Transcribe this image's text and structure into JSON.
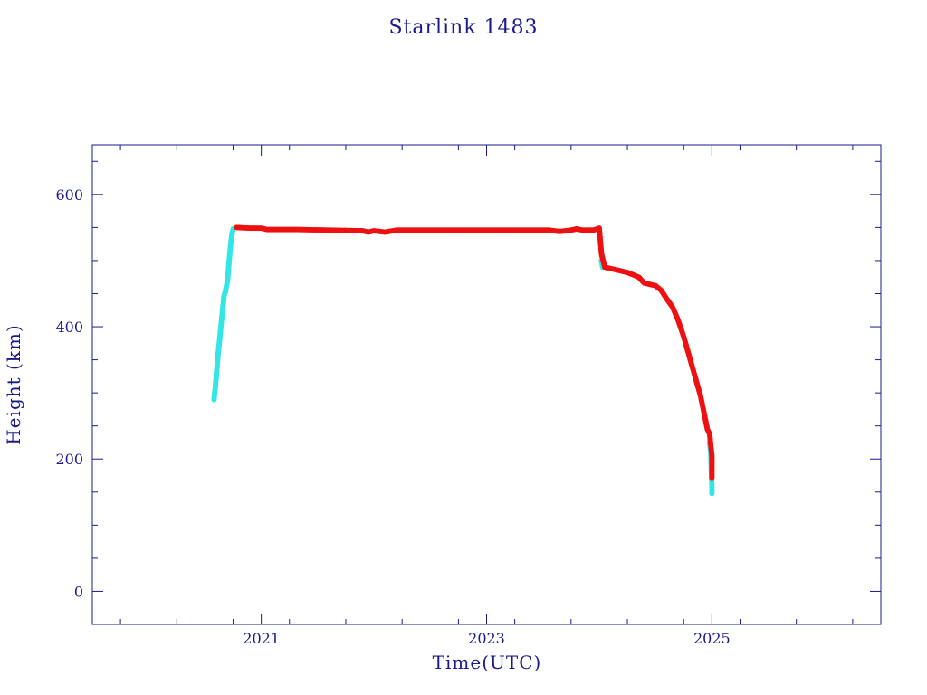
{
  "chart_data": {
    "type": "scatter",
    "title": "Starlink 1483",
    "xlabel": "Time(UTC)",
    "ylabel": "Height (km)",
    "xlim": [
      2019.5,
      2026.5
    ],
    "ylim": [
      -50,
      675
    ],
    "x_ticks": [
      2021,
      2023,
      2025
    ],
    "x_tick_labels": [
      "2021",
      "2023",
      "2025"
    ],
    "y_ticks": [
      0,
      200,
      400,
      600
    ],
    "y_tick_labels": [
      "0",
      "200",
      "400",
      "600"
    ],
    "grid": false,
    "legend": "none",
    "colors": {
      "series_a": "#33e6e6",
      "series_b": "#ee1111",
      "axis": "#1a1a8c"
    },
    "series": [
      {
        "color": "#33e6e6",
        "points": [
          [
            2020.58,
            290
          ],
          [
            2020.59,
            305
          ],
          [
            2020.6,
            325
          ],
          [
            2020.61,
            345
          ],
          [
            2020.62,
            365
          ],
          [
            2020.63,
            380
          ],
          [
            2020.64,
            398
          ],
          [
            2020.65,
            415
          ],
          [
            2020.66,
            432
          ],
          [
            2020.67,
            448
          ],
          [
            2020.68,
            452
          ],
          [
            2020.7,
            470
          ],
          [
            2020.71,
            490
          ],
          [
            2020.72,
            510
          ],
          [
            2020.73,
            528
          ],
          [
            2020.74,
            540
          ],
          [
            2020.75,
            548
          ],
          [
            2024.02,
            500
          ],
          [
            2024.03,
            490
          ],
          [
            2024.98,
            225
          ],
          [
            2024.99,
            212
          ],
          [
            2025.0,
            160
          ],
          [
            2025.0,
            148
          ]
        ]
      },
      {
        "color": "#ee1111",
        "points": [
          [
            2020.78,
            550
          ],
          [
            2020.9,
            549
          ],
          [
            2021.0,
            549
          ],
          [
            2021.05,
            547
          ],
          [
            2021.3,
            547
          ],
          [
            2021.6,
            546
          ],
          [
            2021.9,
            545
          ],
          [
            2021.95,
            543
          ],
          [
            2022.0,
            545
          ],
          [
            2022.1,
            543
          ],
          [
            2022.2,
            546
          ],
          [
            2022.5,
            546
          ],
          [
            2022.8,
            546
          ],
          [
            2023.0,
            546
          ],
          [
            2023.3,
            546
          ],
          [
            2023.55,
            546
          ],
          [
            2023.65,
            544
          ],
          [
            2023.75,
            546
          ],
          [
            2023.8,
            548
          ],
          [
            2023.85,
            546
          ],
          [
            2023.95,
            546
          ],
          [
            2024.0,
            549
          ],
          [
            2024.01,
            530
          ],
          [
            2024.02,
            510
          ],
          [
            2024.05,
            490
          ],
          [
            2024.15,
            486
          ],
          [
            2024.25,
            482
          ],
          [
            2024.35,
            475
          ],
          [
            2024.4,
            466
          ],
          [
            2024.5,
            462
          ],
          [
            2024.55,
            455
          ],
          [
            2024.6,
            442
          ],
          [
            2024.65,
            430
          ],
          [
            2024.7,
            410
          ],
          [
            2024.75,
            385
          ],
          [
            2024.8,
            355
          ],
          [
            2024.85,
            325
          ],
          [
            2024.9,
            295
          ],
          [
            2024.93,
            270
          ],
          [
            2024.96,
            245
          ],
          [
            2024.98,
            238
          ],
          [
            2025.0,
            205
          ],
          [
            2025.0,
            172
          ]
        ]
      }
    ]
  }
}
